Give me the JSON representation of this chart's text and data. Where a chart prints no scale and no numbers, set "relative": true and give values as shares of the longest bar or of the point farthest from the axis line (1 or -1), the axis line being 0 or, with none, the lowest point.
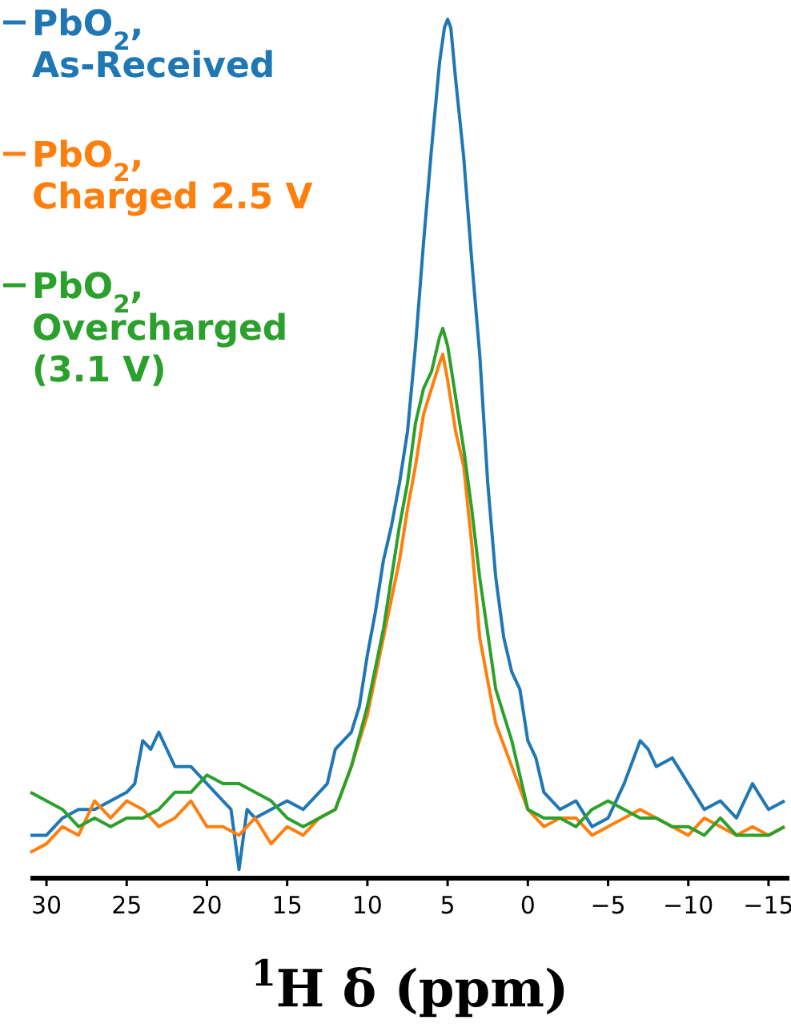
{
  "chart_data": {
    "type": "line",
    "relative": true,
    "xlabel": "$^{1}$H δ (ppm)",
    "xlim": [
      31,
      -16.3
    ],
    "xticks": [
      30,
      25,
      20,
      15,
      10,
      5,
      0,
      {
        "value": -5,
        "label": "−5"
      },
      {
        "value": -10,
        "label": "−10"
      },
      {
        "value": -15,
        "label": "−15"
      }
    ],
    "legend": "top left",
    "grid": false,
    "tick_labels": "x",
    "line_style": "solid",
    "marker": "none",
    "series": [
      {
        "name": "PbO$_{2}$,\nAs-Received",
        "color": "#1f77b4",
        "x": [
          31,
          30,
          29,
          28,
          27,
          26,
          25,
          24.5,
          24,
          23.5,
          23,
          22.5,
          22,
          21,
          20,
          19,
          18.5,
          18,
          17.5,
          17,
          16,
          15,
          14,
          13,
          12.5,
          12,
          11.5,
          11,
          10.5,
          10,
          9.5,
          9,
          8.5,
          8,
          7.5,
          7,
          6.5,
          6,
          5.5,
          5.2,
          5,
          4.8,
          4.5,
          4,
          3.5,
          3,
          2.5,
          2,
          1.5,
          1,
          0.5,
          0,
          -0.5,
          -1,
          -2,
          -3,
          -4,
          -5,
          -6,
          -7,
          -7.5,
          -8,
          -9,
          -10,
          -11,
          -12,
          -13,
          -14,
          -15,
          -16
        ],
        "values": [
          0.05,
          0.05,
          0.07,
          0.08,
          0.08,
          0.09,
          0.1,
          0.11,
          0.16,
          0.15,
          0.17,
          0.15,
          0.13,
          0.13,
          0.11,
          0.09,
          0.08,
          0.01,
          0.08,
          0.07,
          0.08,
          0.09,
          0.08,
          0.1,
          0.11,
          0.15,
          0.16,
          0.17,
          0.2,
          0.26,
          0.31,
          0.37,
          0.41,
          0.46,
          0.52,
          0.62,
          0.74,
          0.85,
          0.95,
          0.99,
          1,
          0.99,
          0.93,
          0.84,
          0.72,
          0.61,
          0.46,
          0.35,
          0.28,
          0.24,
          0.22,
          0.16,
          0.14,
          0.1,
          0.08,
          0.09,
          0.06,
          0.07,
          0.11,
          0.16,
          0.15,
          0.13,
          0.14,
          0.11,
          0.08,
          0.09,
          0.07,
          0.11,
          0.08,
          0.09
        ]
      },
      {
        "name": "PbO$_{2}$,\nCharged 2.5 V",
        "color": "#ff7f0e",
        "x": [
          31,
          30,
          29,
          28,
          27,
          26,
          25,
          24,
          23,
          22,
          21,
          20,
          19,
          18,
          17,
          16,
          15,
          14,
          13,
          12,
          11,
          10,
          9,
          8,
          7.5,
          7,
          6.5,
          6,
          5.5,
          5.3,
          5,
          4.5,
          4,
          3.5,
          3,
          2,
          1,
          0,
          -1,
          -2,
          -3,
          -4,
          -5,
          -6,
          -7,
          -8,
          -9,
          -10,
          -11,
          -12,
          -13,
          -14,
          -15,
          -16
        ],
        "values": [
          0.03,
          0.04,
          0.06,
          0.05,
          0.09,
          0.07,
          0.09,
          0.08,
          0.06,
          0.07,
          0.09,
          0.06,
          0.06,
          0.05,
          0.07,
          0.04,
          0.06,
          0.05,
          0.07,
          0.08,
          0.13,
          0.19,
          0.28,
          0.37,
          0.43,
          0.48,
          0.54,
          0.57,
          0.6,
          0.61,
          0.58,
          0.52,
          0.48,
          0.39,
          0.28,
          0.18,
          0.13,
          0.08,
          0.06,
          0.07,
          0.07,
          0.05,
          0.06,
          0.07,
          0.08,
          0.07,
          0.06,
          0.05,
          0.07,
          0.06,
          0.05,
          0.06,
          0.05,
          0.06
        ]
      },
      {
        "name": "PbO$_{2}$,\nOvercharged\n(3.1 V)",
        "color": "#2ca02c",
        "x": [
          31,
          30,
          29,
          28,
          27,
          26,
          25,
          24,
          23,
          22,
          21,
          20,
          19,
          18,
          17,
          16,
          15,
          14,
          13,
          12,
          11,
          10,
          9,
          8,
          7.5,
          7,
          6.5,
          6,
          5.5,
          5.3,
          5,
          4.5,
          4,
          3.5,
          3,
          2,
          1,
          0,
          -1,
          -2,
          -3,
          -4,
          -5,
          -6,
          -7,
          -8,
          -9,
          -10,
          -11,
          -12,
          -13,
          -14,
          -15,
          -16
        ],
        "values": [
          0.1,
          0.09,
          0.08,
          0.06,
          0.07,
          0.06,
          0.07,
          0.07,
          0.08,
          0.1,
          0.1,
          0.12,
          0.11,
          0.11,
          0.1,
          0.09,
          0.07,
          0.06,
          0.07,
          0.08,
          0.13,
          0.2,
          0.29,
          0.41,
          0.46,
          0.53,
          0.57,
          0.59,
          0.63,
          0.64,
          0.62,
          0.56,
          0.5,
          0.43,
          0.35,
          0.22,
          0.16,
          0.08,
          0.07,
          0.07,
          0.06,
          0.08,
          0.09,
          0.08,
          0.07,
          0.07,
          0.06,
          0.06,
          0.05,
          0.07,
          0.05,
          0.05,
          0.05,
          0.06
        ]
      }
    ]
  }
}
